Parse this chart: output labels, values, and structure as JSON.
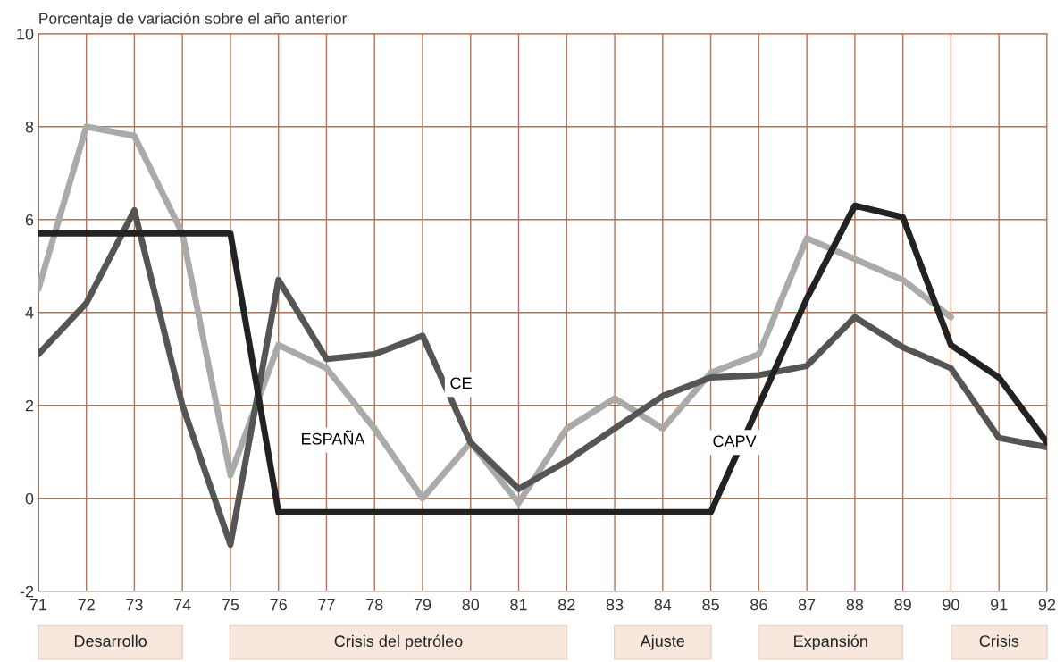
{
  "chart_data": {
    "type": "line",
    "ylabel": "Porcentaje de variación sobre el año anterior",
    "x": [
      71,
      72,
      73,
      74,
      75,
      76,
      77,
      78,
      79,
      80,
      81,
      82,
      83,
      84,
      85,
      86,
      87,
      88,
      89,
      90,
      91,
      92
    ],
    "series": [
      {
        "name": "CAPV",
        "color": "#222222",
        "values": [
          5.7,
          5.7,
          5.7,
          5.7,
          5.7,
          -0.3,
          -0.3,
          -0.3,
          -0.3,
          -0.3,
          -0.3,
          -0.3,
          -0.3,
          -0.3,
          -0.3,
          2.0,
          4.3,
          6.3,
          6.05,
          3.3,
          2.6,
          1.2
        ]
      },
      {
        "name": "CE",
        "color": "#555555",
        "values": [
          3.1,
          4.2,
          6.2,
          2.0,
          -1.0,
          4.7,
          3.0,
          3.1,
          3.5,
          1.2,
          0.2,
          0.8,
          1.5,
          2.2,
          2.6,
          2.65,
          2.85,
          3.9,
          3.25,
          2.8,
          1.3,
          1.1
        ]
      },
      {
        "name": "ESPAÑA",
        "color": "#aaaaaa",
        "values": [
          4.5,
          8.0,
          7.8,
          5.7,
          0.5,
          3.3,
          2.8,
          1.5,
          0.0,
          1.2,
          -0.1,
          1.5,
          2.15,
          1.5,
          2.7,
          3.1,
          5.6,
          5.15,
          4.7,
          3.9,
          null,
          null
        ]
      }
    ],
    "xlim": [
      71,
      92
    ],
    "xticks": [
      71,
      72,
      73,
      74,
      75,
      76,
      77,
      78,
      79,
      80,
      81,
      82,
      83,
      84,
      85,
      86,
      87,
      88,
      89,
      90,
      91,
      92
    ],
    "ylim": [
      -2,
      10
    ],
    "yticks": [
      -2,
      0,
      2,
      4,
      6,
      8,
      10
    ],
    "grid": true,
    "legend": false,
    "marker": "none",
    "line_style": "solid",
    "annotations": [
      "Desarrollo",
      "Crisis del petróleo",
      "Ajuste",
      "Expansión",
      "Crisis"
    ]
  }
}
